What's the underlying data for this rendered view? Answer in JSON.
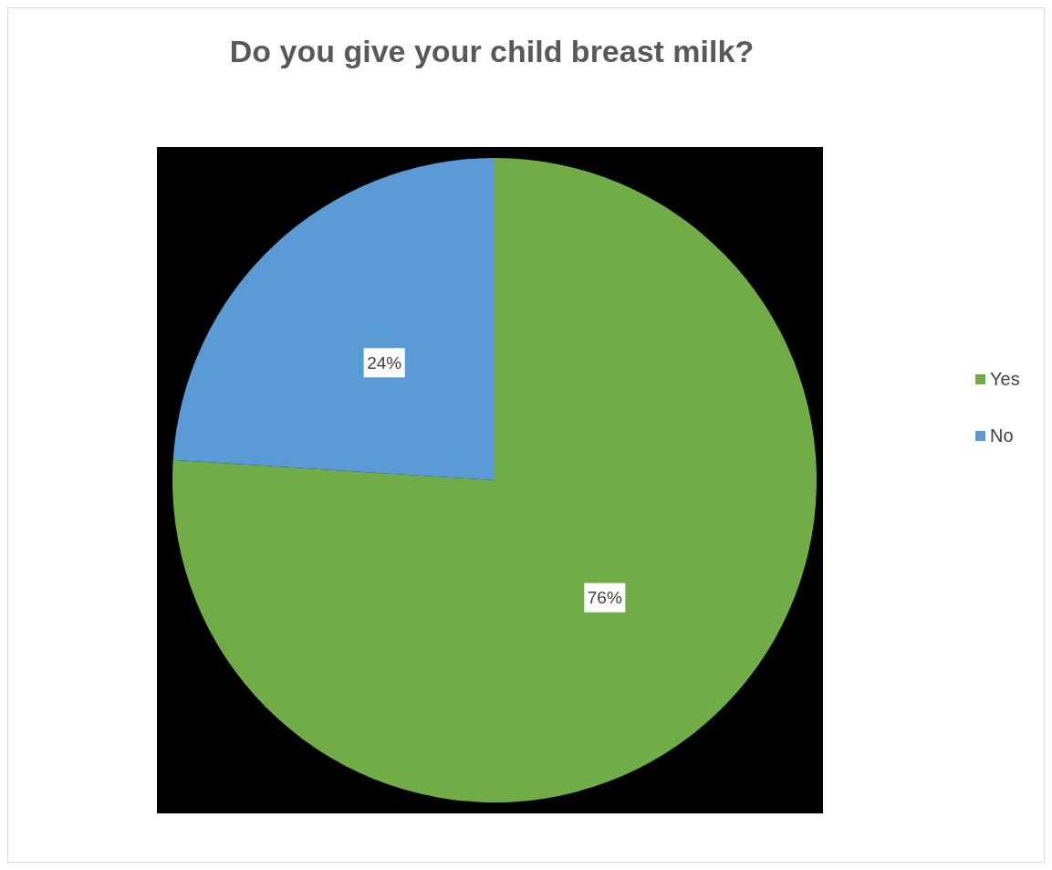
{
  "chart_data": {
    "type": "pie",
    "title": "Do you give your child breast milk?",
    "categories": [
      "Yes",
      "No"
    ],
    "values": [
      76,
      24
    ],
    "colors": [
      "#70ad47",
      "#5b9bd5"
    ],
    "value_labels": [
      "76%",
      "24%"
    ],
    "legend": "right"
  }
}
